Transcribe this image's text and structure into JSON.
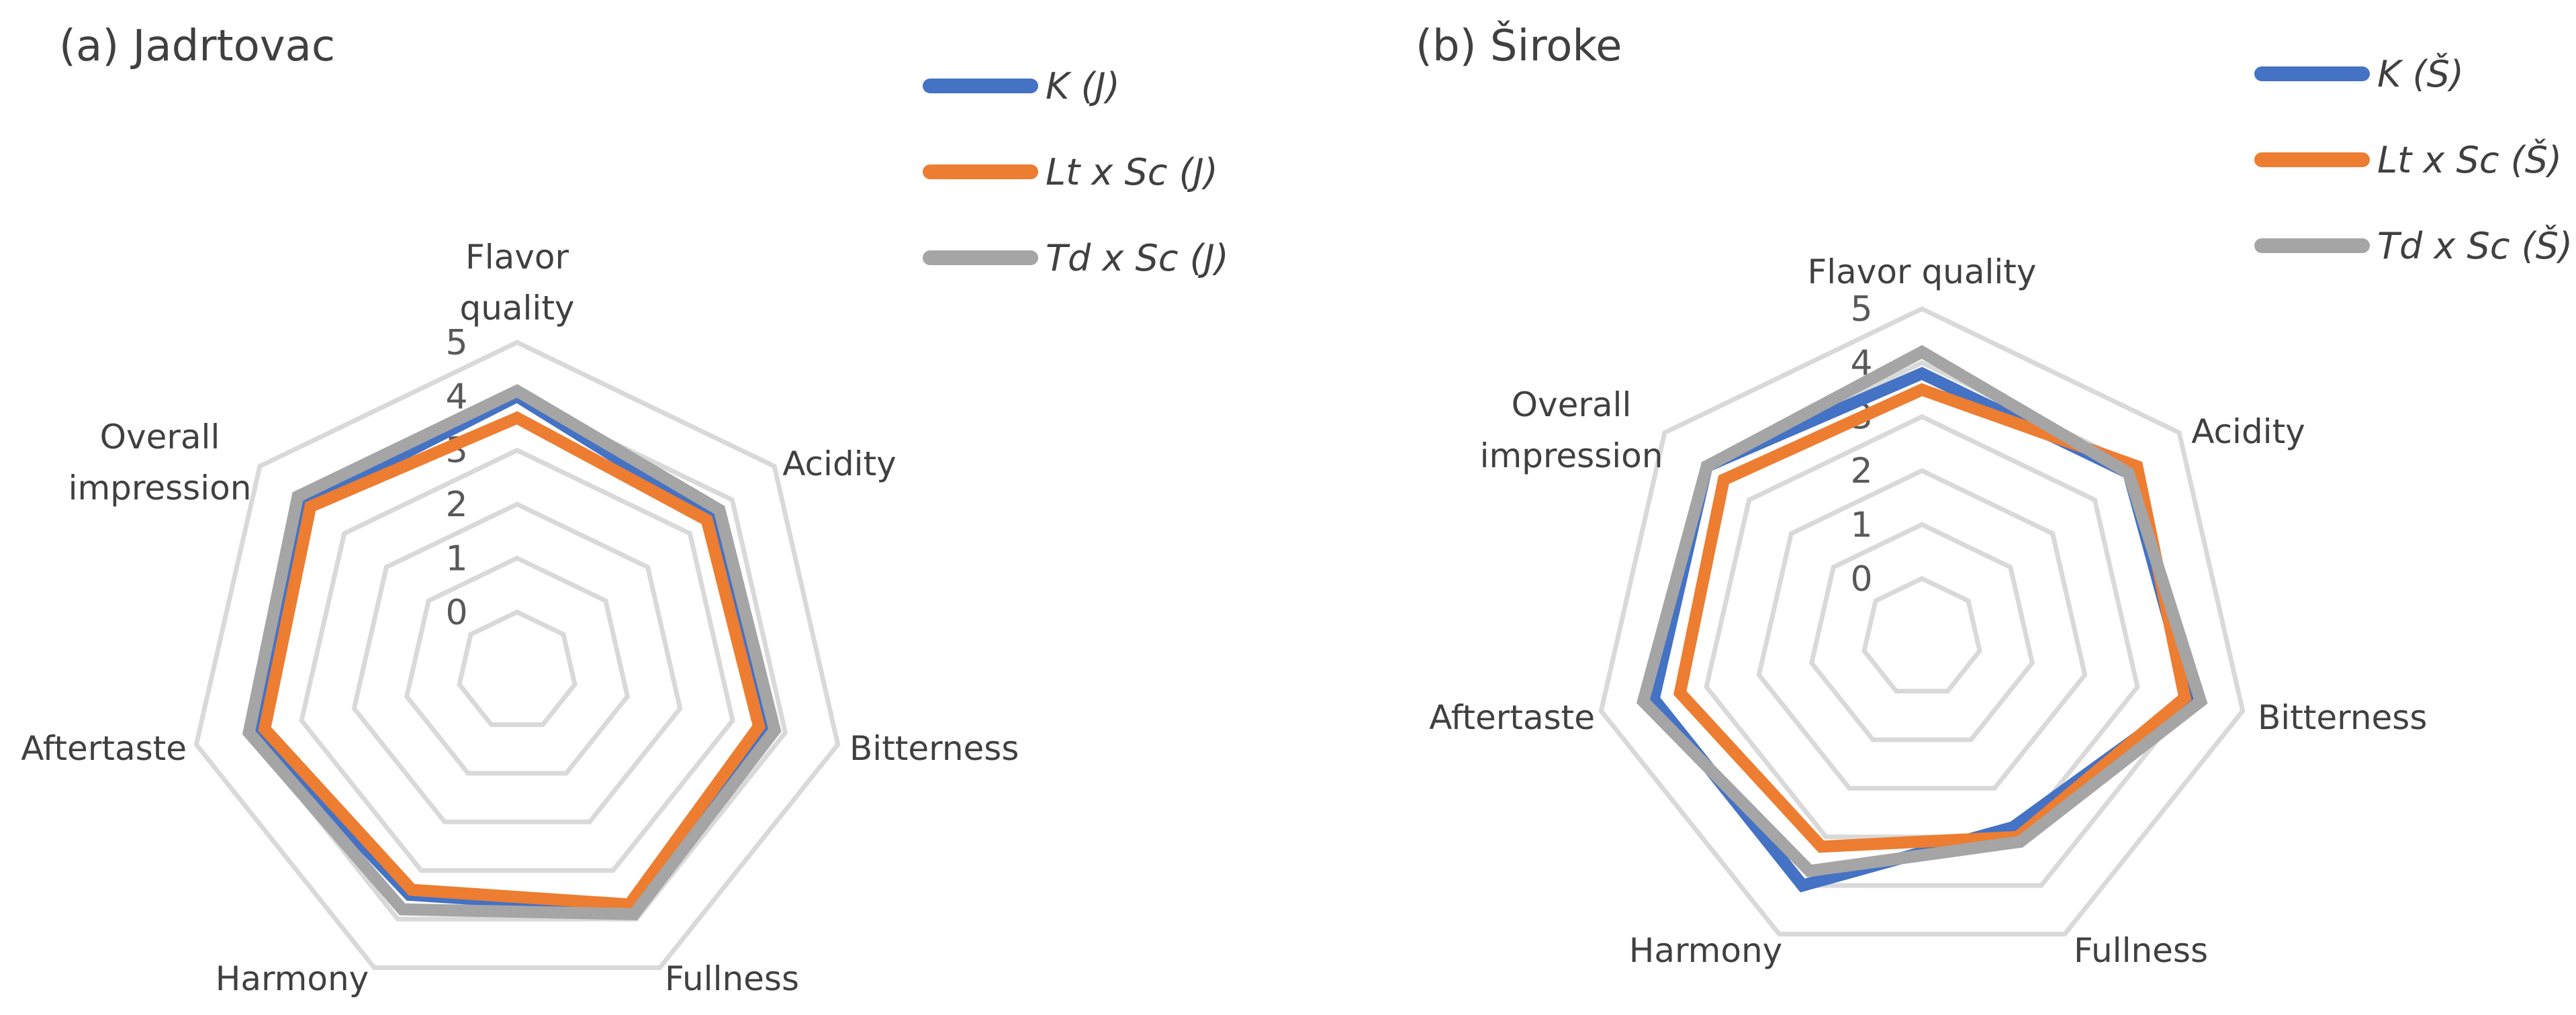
{
  "chart_data": [
    {
      "type": "radar",
      "title": "(a) Jadrtovac",
      "axes": [
        "Flavor quality",
        "Acidity",
        "Bitterness",
        "Fullness",
        "Harmony",
        "Aftertaste",
        "Overall impression"
      ],
      "axis_label_lines": [
        [
          "Flavor",
          "quality"
        ],
        [
          "Acidity"
        ],
        [
          "Bitterness"
        ],
        [
          "Fullness"
        ],
        [
          "Harmony"
        ],
        [
          "Aftertaste"
        ],
        [
          "Overall",
          "impression"
        ]
      ],
      "rmin": 0,
      "rmax": 5,
      "ticks": [
        0,
        1,
        2,
        3,
        4,
        5
      ],
      "grid": true,
      "legend_position": "top-right",
      "series": [
        {
          "name": "K (J)",
          "color": "#4472C4",
          "values": [
            4.0,
            3.5,
            3.6,
            3.8,
            3.5,
            3.9,
            3.9
          ]
        },
        {
          "name": "Lt x Sc (J)",
          "color": "#ED7D31",
          "values": [
            3.6,
            3.4,
            3.5,
            3.7,
            3.4,
            3.7,
            3.8
          ]
        },
        {
          "name": "Td x Sc (J)",
          "color": "#A5A5A5",
          "values": [
            4.1,
            3.7,
            3.8,
            3.9,
            3.8,
            4.0,
            4.1
          ]
        }
      ]
    },
    {
      "type": "radar",
      "title": "(b) Široke",
      "axes": [
        "Flavor quality",
        "Acidity",
        "Bitterness",
        "Fullness",
        "Harmony",
        "Aftertaste",
        "Overall impression"
      ],
      "axis_label_lines": [
        [
          "Flavor quality"
        ],
        [
          "Acidity"
        ],
        [
          "Bitterness"
        ],
        [
          "Fullness"
        ],
        [
          "Harmony"
        ],
        [
          "Aftertaste"
        ],
        [
          "Overall",
          "impression"
        ]
      ],
      "rmin": 0,
      "rmax": 5,
      "ticks": [
        0,
        1,
        2,
        3,
        4,
        5
      ],
      "grid": true,
      "legend_position": "top-right",
      "series": [
        {
          "name": "K (Š)",
          "color": "#4472C4",
          "values": [
            3.8,
            3.8,
            4.0,
            2.8,
            4.0,
            4.0,
            4.0
          ]
        },
        {
          "name": "Lt x Sc (Š)",
          "color": "#ED7D31",
          "values": [
            3.5,
            4.0,
            3.9,
            3.0,
            3.2,
            3.5,
            3.6
          ]
        },
        {
          "name": "Td x Sc (Š)",
          "color": "#A5A5A5",
          "values": [
            4.2,
            3.8,
            4.2,
            3.1,
            3.7,
            4.2,
            4.0
          ]
        }
      ]
    }
  ]
}
